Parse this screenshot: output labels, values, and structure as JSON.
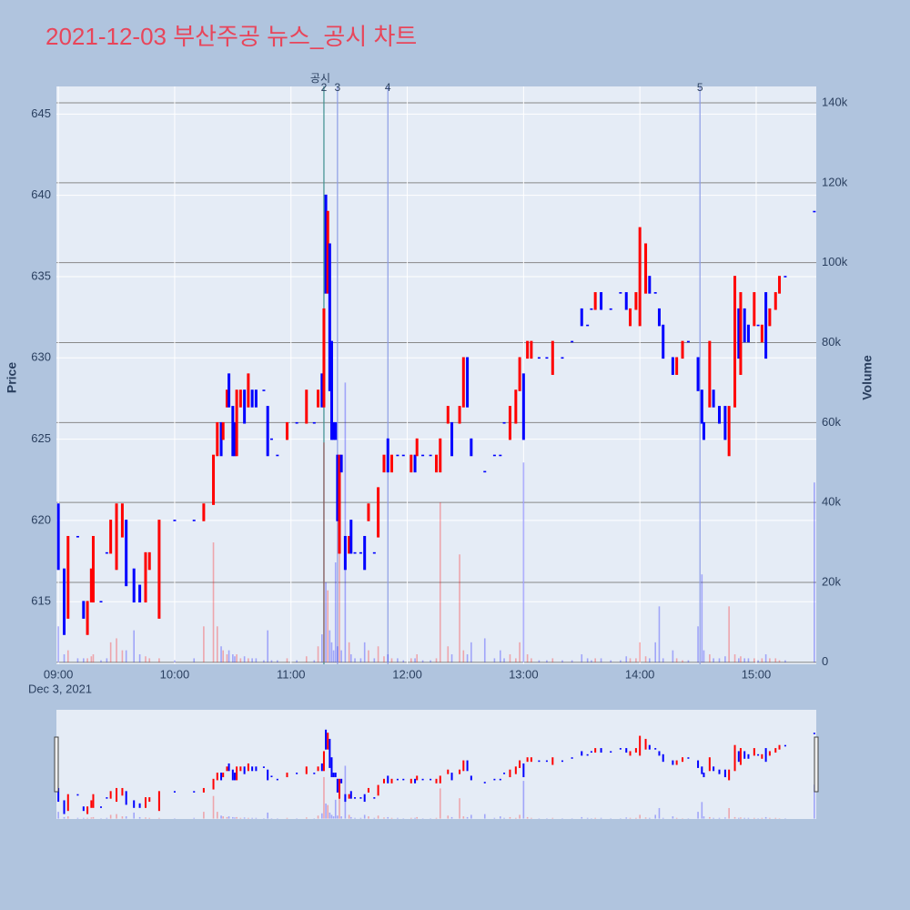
{
  "chart_data": {
    "type": "candlestick",
    "title": "2021-12-03 부산주공 뉴스_공시 차트",
    "ylabel": "Price",
    "y2label": "Volume",
    "xdate": "Dec 3, 2021",
    "up_color": "#ff0000",
    "down_color": "#0000ff",
    "grid": true,
    "xlim": [
      "08:59",
      "15:31"
    ],
    "xticks": [
      "09:00",
      "10:00",
      "11:00",
      "12:00",
      "13:00",
      "14:00",
      "15:00"
    ],
    "ylim": [
      611.15,
      646.7
    ],
    "yticks": [
      615,
      620,
      625,
      630,
      635,
      640,
      645
    ],
    "y2lim": [
      -500,
      144100
    ],
    "y2ticks": [
      0,
      {
        "value": 20000,
        "label": "20k"
      },
      {
        "value": 40000,
        "label": "40k"
      },
      {
        "value": 60000,
        "label": "60k"
      },
      {
        "value": 80000,
        "label": "80k"
      },
      {
        "value": 100000,
        "label": "100k"
      },
      {
        "value": 120000,
        "label": "120k"
      },
      {
        "value": 140000,
        "label": "140k"
      }
    ],
    "events": [
      {
        "x": "11:17",
        "label": "2",
        "name": "공시",
        "color": "#3d8f8f"
      },
      {
        "x": "11:24",
        "label": "3",
        "color": "#8d9de6"
      },
      {
        "x": "11:50",
        "label": "4",
        "color": "#8d9de6"
      },
      {
        "x": "14:31",
        "label": "5",
        "color": "#8d9de6"
      }
    ],
    "x": [
      "09:00",
      "09:03",
      "09:05",
      "09:10",
      "09:13",
      "09:15",
      "09:17",
      "09:18",
      "09:22",
      "09:25",
      "09:27",
      "09:30",
      "09:33",
      "09:35",
      "09:39",
      "09:42",
      "09:45",
      "09:47",
      "09:52",
      "10:00",
      "10:10",
      "10:15",
      "10:20",
      "10:22",
      "10:24",
      "10:25",
      "10:27",
      "10:28",
      "10:30",
      "10:31",
      "10:32",
      "10:34",
      "10:36",
      "10:38",
      "10:40",
      "10:42",
      "10:46",
      "10:48",
      "10:50",
      "10:53",
      "10:58",
      "11:03",
      "11:08",
      "11:12",
      "11:14",
      "11:16",
      "11:17",
      "11:18",
      "11:19",
      "11:20",
      "11:21",
      "11:22",
      "11:23",
      "11:24",
      "11:25",
      "11:26",
      "11:28",
      "11:30",
      "11:31",
      "11:33",
      "11:36",
      "11:38",
      "11:40",
      "11:43",
      "11:45",
      "11:48",
      "11:50",
      "11:52",
      "11:55",
      "11:58",
      "12:02",
      "12:04",
      "12:05",
      "12:08",
      "12:12",
      "12:15",
      "12:17",
      "12:21",
      "12:23",
      "12:27",
      "12:29",
      "12:31",
      "12:33",
      "12:40",
      "12:45",
      "12:48",
      "12:50",
      "12:53",
      "12:56",
      "12:58",
      "13:00",
      "13:02",
      "13:04",
      "13:08",
      "13:12",
      "13:15",
      "13:20",
      "13:25",
      "13:30",
      "13:33",
      "13:35",
      "13:37",
      "13:40",
      "13:45",
      "13:50",
      "13:53",
      "13:55",
      "13:58",
      "14:00",
      "14:03",
      "14:05",
      "14:08",
      "14:10",
      "14:12",
      "14:17",
      "14:19",
      "14:22",
      "14:25",
      "14:30",
      "14:32",
      "14:33",
      "14:36",
      "14:38",
      "14:41",
      "14:44",
      "14:46",
      "14:49",
      "14:51",
      "14:52",
      "14:54",
      "14:56",
      "14:59",
      "15:01",
      "15:03",
      "15:05",
      "15:07",
      "15:10",
      "15:12",
      "15:15",
      "15:30"
    ],
    "open": [
      621,
      617,
      614,
      619,
      615,
      613,
      615,
      615,
      615,
      618,
      618,
      617,
      619,
      620,
      617,
      616,
      615,
      617,
      614,
      620,
      620,
      620,
      621,
      624,
      626,
      625,
      627,
      629,
      627,
      626,
      624,
      627,
      628,
      627,
      628,
      628,
      628,
      627,
      625,
      624,
      625,
      626,
      626,
      626,
      627,
      629,
      627,
      640,
      634,
      637,
      631,
      626,
      626,
      624,
      618,
      624,
      619,
      618,
      620,
      618,
      618,
      619,
      620,
      618,
      619,
      623,
      625,
      623,
      624,
      624,
      623,
      624,
      624,
      624,
      624,
      623,
      623,
      626,
      626,
      626,
      627,
      630,
      625,
      623,
      624,
      624,
      626,
      625,
      626,
      628,
      629,
      630,
      630,
      630,
      630,
      629,
      630,
      631,
      633,
      632,
      633,
      633,
      634,
      633,
      634,
      634,
      632,
      633,
      632,
      634,
      635,
      634,
      633,
      632,
      630,
      629,
      630,
      631,
      630,
      628,
      626,
      627,
      628,
      627,
      627,
      624,
      627,
      633,
      629,
      633,
      632,
      632,
      632,
      631,
      634,
      632,
      633,
      634,
      635,
      639
    ],
    "close": [
      617,
      613,
      619,
      619,
      614,
      615,
      617,
      619,
      615,
      618,
      620,
      621,
      621,
      616,
      615,
      615,
      618,
      618,
      620,
      620,
      620,
      621,
      624,
      626,
      624,
      626,
      628,
      627,
      624,
      624,
      628,
      628,
      626,
      629,
      627,
      627,
      628,
      624,
      625,
      624,
      626,
      626,
      628,
      626,
      628,
      627,
      633,
      634,
      639,
      628,
      625,
      625,
      625,
      620,
      624,
      623,
      617,
      619,
      618,
      618,
      618,
      617,
      621,
      618,
      622,
      624,
      623,
      624,
      624,
      624,
      624,
      623,
      625,
      624,
      624,
      624,
      625,
      627,
      624,
      627,
      630,
      627,
      624,
      623,
      624,
      624,
      626,
      627,
      628,
      630,
      625,
      631,
      631,
      630,
      630,
      631,
      630,
      631,
      632,
      632,
      633,
      634,
      633,
      633,
      634,
      633,
      633,
      634,
      638,
      637,
      634,
      634,
      632,
      630,
      629,
      630,
      631,
      631,
      628,
      626,
      625,
      631,
      627,
      626,
      625,
      627,
      635,
      630,
      634,
      631,
      631,
      634,
      632,
      632,
      630,
      633,
      634,
      635,
      635,
      639
    ],
    "volume": [
      9000,
      2000,
      3000,
      1000,
      1000,
      1000,
      1500,
      2000,
      500,
      1000,
      5000,
      6000,
      3000,
      3000,
      8000,
      2000,
      1500,
      1000,
      1000,
      500,
      1000,
      9000,
      30000,
      9000,
      4000,
      3000,
      2000,
      3000,
      2000,
      1500,
      2000,
      1000,
      1500,
      1000,
      1000,
      1000,
      500,
      8000,
      500,
      500,
      1000,
      500,
      1500,
      500,
      4000,
      7000,
      55000,
      20000,
      18000,
      8000,
      5000,
      3000,
      25000,
      4000,
      30000,
      3000,
      70000,
      5000,
      2000,
      1000,
      1000,
      5000,
      3000,
      1000,
      4000,
      1500,
      2000,
      1000,
      1000,
      500,
      1000,
      1000,
      2000,
      500,
      500,
      1000,
      40000,
      4000,
      2000,
      27000,
      3000,
      2000,
      5000,
      6000,
      1000,
      3000,
      1000,
      2000,
      1000,
      5000,
      50000,
      2000,
      1000,
      500,
      500,
      1000,
      500,
      500,
      2000,
      1000,
      500,
      1000,
      1000,
      500,
      500,
      1500,
      1000,
      1000,
      5000,
      1500,
      1000,
      5000,
      14000,
      1000,
      3000,
      1000,
      500,
      500,
      9000,
      22000,
      3000,
      2000,
      1000,
      1000,
      1500,
      14000,
      2000,
      1000,
      1500,
      1000,
      1000,
      1000,
      500,
      1000,
      2000,
      1000,
      1000,
      500,
      500,
      45000
    ]
  }
}
